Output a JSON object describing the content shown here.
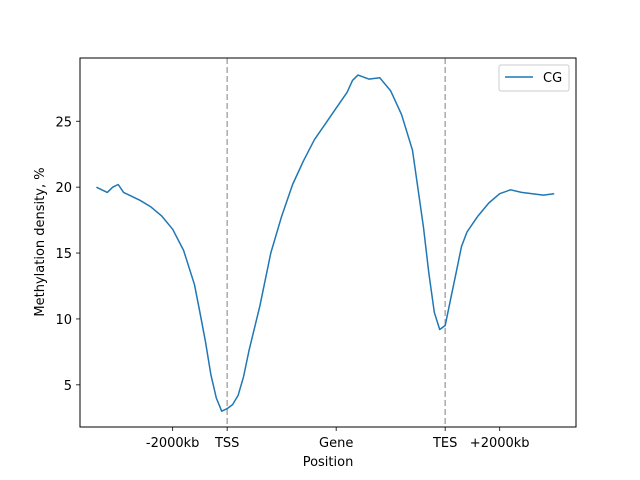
{
  "chart_data": {
    "type": "line",
    "xlabel": "Position",
    "ylabel": "Methylation density, %",
    "x_ticks": [
      {
        "label": "-2000kb",
        "x": 0.5
      },
      {
        "label": "TSS",
        "x": 1
      },
      {
        "label": "Gene",
        "x": 2
      },
      {
        "label": "TES",
        "x": 3
      },
      {
        "label": "+2000kb",
        "x": 3.5
      }
    ],
    "y_ticks": [
      5,
      10,
      15,
      20,
      25
    ],
    "xlim": [
      -0.35,
      4.2
    ],
    "ylim": [
      1.8,
      29.8
    ],
    "vlines": [
      {
        "x": 1,
        "color": "#aaaaaa",
        "style": "dashed"
      },
      {
        "x": 3,
        "color": "#aaaaaa",
        "style": "dashed"
      }
    ],
    "legend_position": "top-right",
    "grid": false,
    "series": [
      {
        "name": "CG",
        "color": "#1f77b4",
        "x": [
          -0.2,
          -0.15,
          -0.1,
          -0.05,
          0,
          0.05,
          0.1,
          0.15,
          0.2,
          0.3,
          0.4,
          0.5,
          0.6,
          0.7,
          0.75,
          0.8,
          0.85,
          0.9,
          0.95,
          1.0,
          1.05,
          1.1,
          1.15,
          1.2,
          1.3,
          1.4,
          1.5,
          1.6,
          1.7,
          1.8,
          1.9,
          2.0,
          2.1,
          2.15,
          2.2,
          2.3,
          2.4,
          2.5,
          2.6,
          2.7,
          2.8,
          2.85,
          2.9,
          2.95,
          3.0,
          3.05,
          3.1,
          3.15,
          3.2,
          3.25,
          3.3,
          3.4,
          3.5,
          3.6,
          3.7,
          3.8,
          3.9,
          4.0
        ],
        "values": [
          20.0,
          19.8,
          19.6,
          20.0,
          20.2,
          19.6,
          19.4,
          19.2,
          19.0,
          18.5,
          17.8,
          16.8,
          15.2,
          12.6,
          10.5,
          8.3,
          5.8,
          4.0,
          3.0,
          3.2,
          3.5,
          4.2,
          5.6,
          7.6,
          11.0,
          15.0,
          17.8,
          20.2,
          22.0,
          23.6,
          24.8,
          26.0,
          27.2,
          28.1,
          28.5,
          28.2,
          28.3,
          27.3,
          25.5,
          22.8,
          17.0,
          13.5,
          10.5,
          9.2,
          9.5,
          11.5,
          13.5,
          15.5,
          16.6,
          17.2,
          17.8,
          18.8,
          19.5,
          19.8,
          19.6,
          19.5,
          19.4,
          19.5
        ]
      }
    ]
  }
}
